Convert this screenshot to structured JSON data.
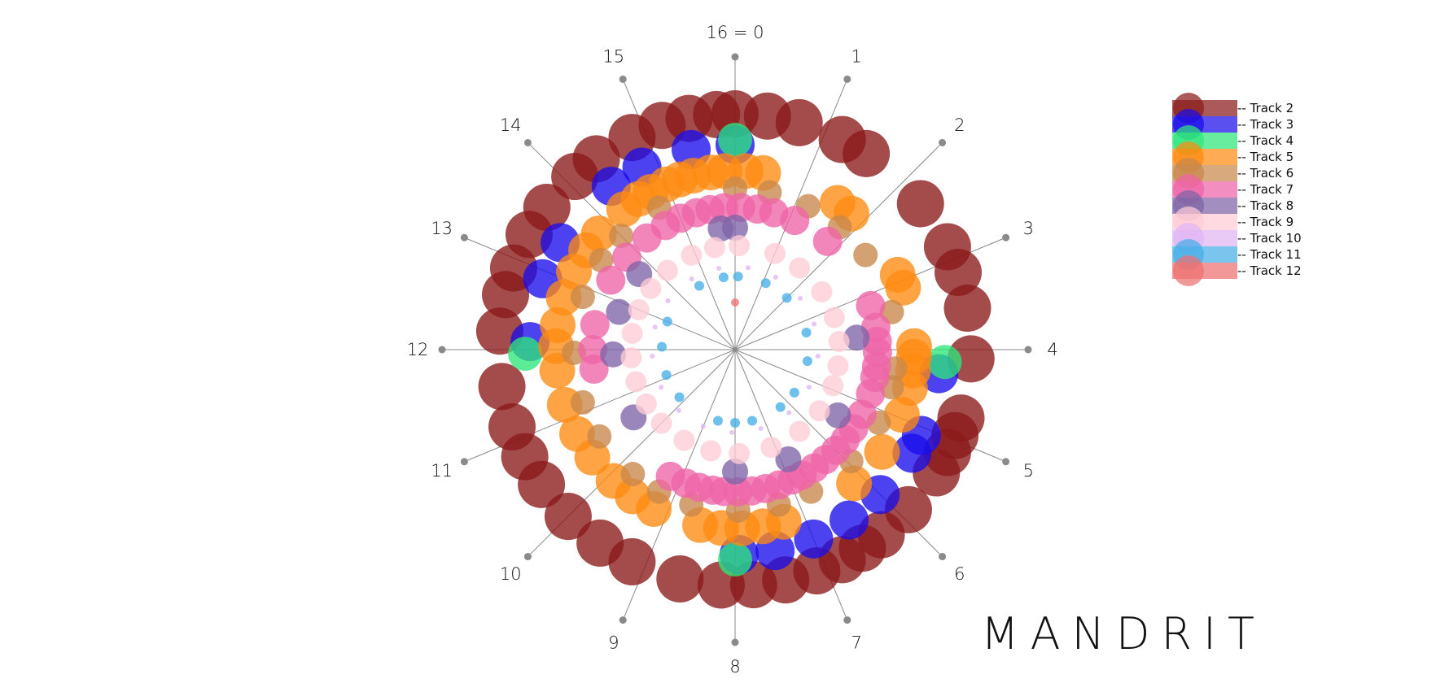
{
  "title": "MANDRIT",
  "spokes": [
    "16 = 0",
    "1",
    "2",
    "3",
    "4",
    "5",
    "6",
    "7",
    "8",
    "9",
    "10",
    "11",
    "12",
    "13",
    "14",
    "15"
  ],
  "legend": [
    {
      "label": "-- Track 2",
      "color": "#8b1a1a"
    },
    {
      "label": "-- Track 3",
      "color": "#1a0dea"
    },
    {
      "label": "-- Track 4",
      "color": "#2ee67a"
    },
    {
      "label": "-- Track 5",
      "color": "#ff8a10"
    },
    {
      "label": "-- Track 6",
      "color": "#c8884a"
    },
    {
      "label": "-- Track 7",
      "color": "#ee64a8"
    },
    {
      "label": "-- Track 8",
      "color": "#7e64a6"
    },
    {
      "label": "-- Track 9",
      "color": "#ffccd6"
    },
    {
      "label": "-- Track 10",
      "color": "#e0b6f4"
    },
    {
      "label": "-- Track 11",
      "color": "#47aee8"
    },
    {
      "label": "-- Track 12",
      "color": "#ee7070"
    }
  ],
  "notes": [
    {
      "track": 2,
      "positions": [
        0,
        0.35,
        0.7,
        1.2,
        1.5,
        2.3,
        2.85,
        3.15,
        3.55,
        4.1,
        4.75,
        4.95,
        5.15,
        5.4,
        5.9,
        6.3,
        6.55,
        6.8,
        7.1,
        7.45,
        7.8,
        8.15,
        8.6,
        9.15,
        9.55,
        10.0,
        10.45,
        10.8,
        11.15,
        11.6,
        12.2,
        12.6,
        12.9,
        13.3,
        13.65,
        14.1,
        14.4,
        14.85,
        15.2,
        15.5,
        15.8
      ],
      "radius": 290,
      "size": 29
    },
    {
      "track": 3,
      "positions": [
        0,
        4.3,
        5.1,
        5.35,
        6.0,
        6.5,
        7.0,
        7.5,
        7.95,
        12.1,
        12.9,
        13.4,
        14.35,
        14.8,
        15.45
      ],
      "radius": 252,
      "size": 24
    },
    {
      "track": 4,
      "positions": [
        0,
        4.15,
        8.0,
        11.95
      ],
      "radius": 258,
      "size": 21
    },
    {
      "track": 5,
      "positions": [
        0.15,
        0.4,
        1.55,
        1.8,
        2.9,
        3.1,
        3.95,
        4.1,
        4.3,
        4.55,
        4.95,
        5.55,
        6.15,
        7.3,
        7.6,
        7.9,
        8.2,
        8.5,
        9.2,
        9.55,
        9.9,
        10.35,
        10.75,
        11.2,
        11.7,
        12.05,
        12.35,
        12.75,
        13.15,
        13.5,
        13.8,
        14.3,
        14.55,
        14.75,
        15.0,
        15.2,
        15.4,
        15.65,
        15.85
      ],
      "radius": 220,
      "size": 22
    },
    {
      "track": 6,
      "positions": [
        0,
        0.55,
        1.2,
        1.8,
        2.4,
        3.4,
        4.3,
        4.6,
        5.2,
        5.95,
        6.75,
        7.3,
        7.95,
        8.7,
        9.25,
        9.75,
        10.55,
        11.15,
        11.95,
        12.85,
        13.5,
        14.0,
        14.75
      ],
      "radius": 198,
      "size": 15
    },
    {
      "track": 7,
      "positions": [
        0.1,
        0.4,
        0.7,
        1.1,
        1.8,
        3.2,
        3.6,
        3.85,
        4.05,
        4.3,
        4.5,
        4.8,
        5.2,
        5.5,
        5.75,
        6.0,
        6.25,
        6.5,
        6.75,
        6.95,
        7.2,
        7.45,
        7.7,
        7.95,
        8.2,
        8.4,
        8.65,
        8.9,
        9.2,
        11.65,
        12.0,
        12.45,
        13.3,
        13.8,
        14.3,
        14.7,
        15.0,
        15.3,
        15.55,
        15.8
      ],
      "radius": 175,
      "size": 18
    },
    {
      "track": 8,
      "positions": [
        0,
        3.75,
        5.45,
        6.85,
        8.0,
        10.5,
        11.9,
        12.8,
        13.7,
        15.7
      ],
      "radius": 150,
      "size": 16
    },
    {
      "track": 9,
      "positions": [
        0.1,
        1.0,
        1.7,
        2.5,
        3.2,
        3.8,
        4.4,
        4.9,
        5.6,
        6.3,
        7.1,
        7.9,
        8.6,
        9.3,
        10.0,
        10.6,
        11.2,
        11.8,
        12.4,
        13.0,
        13.6,
        14.2,
        14.9,
        15.5
      ],
      "radius": 128,
      "size": 13
    },
    {
      "track": 10,
      "positions": [
        0.4,
        1.3,
        2.3,
        3.2,
        4.2,
        5.2,
        6.2,
        7.2,
        8.1,
        9.0,
        9.9,
        10.8,
        11.8,
        12.7,
        13.6,
        14.6,
        15.5
      ],
      "radius": 102,
      "size": 3
    },
    {
      "track": 11,
      "positions": [
        0.1,
        1.1,
        2.0,
        3.4,
        4.4,
        5.6,
        6.3,
        7.4,
        8.0,
        8.6,
        10.2,
        11.1,
        12.1,
        13.0,
        14.7,
        15.6
      ],
      "radius": 90,
      "size": 6
    },
    {
      "track": 12,
      "positions": [
        0
      ],
      "radius": 58,
      "size": 5
    }
  ]
}
